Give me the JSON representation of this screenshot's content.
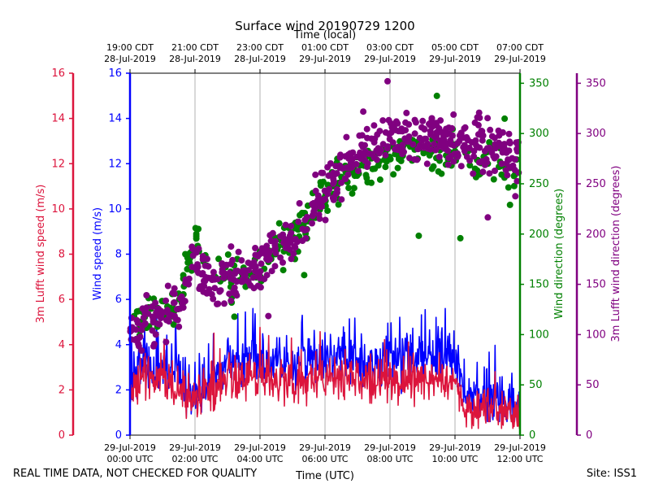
{
  "chart_data": {
    "type": "scatter+line",
    "title": "Surface wind 20190729 1200",
    "top_xlabel": "Time (local)",
    "bottom_xlabel": "Time (UTC)",
    "x_range_hours": [
      0,
      12
    ],
    "bottom_ticks": [
      {
        "h": 0,
        "l1": "29-Jul-2019",
        "l2": "00:00 UTC"
      },
      {
        "h": 2,
        "l1": "29-Jul-2019",
        "l2": "02:00 UTC"
      },
      {
        "h": 4,
        "l1": "29-Jul-2019",
        "l2": "04:00 UTC"
      },
      {
        "h": 6,
        "l1": "29-Jul-2019",
        "l2": "06:00 UTC"
      },
      {
        "h": 8,
        "l1": "29-Jul-2019",
        "l2": "08:00 UTC"
      },
      {
        "h": 10,
        "l1": "29-Jul-2019",
        "l2": "10:00 UTC"
      },
      {
        "h": 12,
        "l1": "29-Jul-2019",
        "l2": "12:00 UTC"
      }
    ],
    "top_ticks": [
      {
        "h": 0,
        "l1": "19:00 CDT",
        "l2": "28-Jul-2019"
      },
      {
        "h": 2,
        "l1": "21:00 CDT",
        "l2": "28-Jul-2019"
      },
      {
        "h": 4,
        "l1": "23:00 CDT",
        "l2": "28-Jul-2019"
      },
      {
        "h": 6,
        "l1": "01:00 CDT",
        "l2": "29-Jul-2019"
      },
      {
        "h": 8,
        "l1": "03:00 CDT",
        "l2": "29-Jul-2019"
      },
      {
        "h": 10,
        "l1": "05:00 CDT",
        "l2": "29-Jul-2019"
      },
      {
        "h": 12,
        "l1": "07:00 CDT",
        "l2": "29-Jul-2019"
      }
    ],
    "axes": {
      "lufft_speed": {
        "label": "3m Lufft wind speed (m/s)",
        "range": [
          0,
          16
        ],
        "ticks": [
          0,
          2,
          4,
          6,
          8,
          10,
          12,
          14,
          16
        ],
        "color": "#dc143c"
      },
      "wind_speed": {
        "label": "Wind speed (m/s)",
        "range": [
          0,
          16
        ],
        "ticks": [
          0,
          2,
          4,
          6,
          8,
          10,
          12,
          14,
          16
        ],
        "color": "#0000ff"
      },
      "wind_dir": {
        "label": "Wind direction (degrees)",
        "range": [
          0,
          360
        ],
        "ticks": [
          0,
          50,
          100,
          150,
          200,
          250,
          300,
          350
        ],
        "color": "#008000"
      },
      "lufft_dir": {
        "label": "3m Lufft wind direction (degrees)",
        "range": [
          0,
          360
        ],
        "ticks": [
          0,
          50,
          100,
          150,
          200,
          250,
          300,
          350
        ],
        "color": "#800080"
      }
    },
    "series": [
      {
        "name": "Wind speed (m/s)",
        "kind": "line",
        "color": "#0000ff",
        "profile_hours": [
          0,
          0.3,
          1,
          2,
          3,
          4,
          5,
          6,
          7,
          8,
          9,
          10,
          10.3,
          11,
          12
        ],
        "profile_values": [
          2.0,
          2.8,
          3.0,
          2.0,
          3.3,
          3.5,
          3.2,
          3.5,
          3.4,
          3.3,
          3.4,
          3.4,
          1.8,
          1.5,
          1.4
        ]
      },
      {
        "name": "3m Lufft wind speed (m/s)",
        "kind": "line",
        "color": "#dc143c",
        "profile_hours": [
          0,
          1,
          2,
          3,
          4,
          5,
          6,
          7,
          8,
          9,
          10,
          10.3,
          11,
          12
        ],
        "profile_values": [
          1.8,
          2.6,
          1.6,
          2.5,
          2.5,
          2.3,
          2.5,
          2.4,
          2.3,
          2.5,
          2.4,
          1.2,
          1.1,
          1.0
        ]
      },
      {
        "name": "Wind direction (degrees)",
        "kind": "scatter",
        "color": "#008000",
        "profile_hours": [
          0,
          1,
          1.5,
          2,
          2.3,
          3,
          4,
          4.5,
          5,
          6,
          7,
          8,
          9,
          10,
          11,
          12
        ],
        "profile_values": [
          110,
          125,
          130,
          200,
          165,
          155,
          165,
          190,
          195,
          240,
          265,
          280,
          285,
          280,
          275,
          255
        ]
      },
      {
        "name": "3m Lufft wind direction (degrees)",
        "kind": "scatter",
        "color": "#800080",
        "profile_hours": [
          0,
          1,
          1.5,
          2,
          2.3,
          3,
          4,
          4.5,
          5,
          6,
          7,
          8,
          9,
          10,
          11,
          12
        ],
        "profile_values": [
          105,
          120,
          125,
          185,
          160,
          150,
          165,
          185,
          190,
          245,
          280,
          300,
          295,
          290,
          285,
          280
        ]
      }
    ]
  },
  "footer": {
    "left": "REAL TIME DATA, NOT CHECKED FOR QUALITY",
    "right": "Site: ISS1"
  }
}
